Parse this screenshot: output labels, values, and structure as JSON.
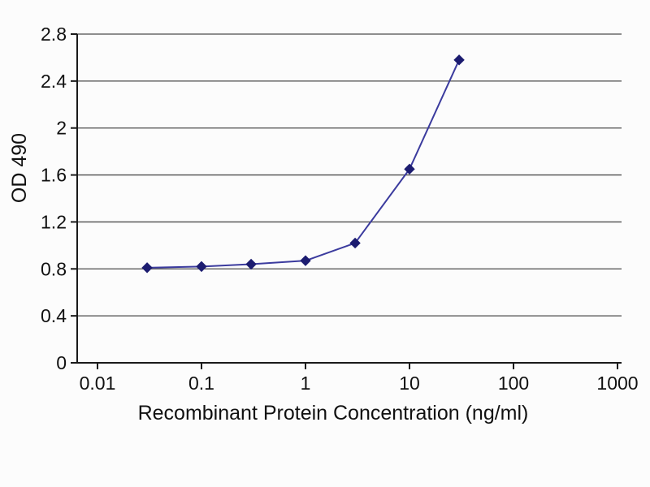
{
  "chart_data": {
    "type": "line",
    "title": "",
    "xlabel": "Recombinant Protein Concentration (ng/ml)",
    "ylabel": "OD 490",
    "x_scale": "log",
    "xlim": [
      0.01,
      1000
    ],
    "ylim": [
      0,
      2.8
    ],
    "x_ticks": [
      0.01,
      0.1,
      1,
      10,
      100,
      1000
    ],
    "x_tick_labels": [
      "0.01",
      "0.1",
      "1",
      "10",
      "100",
      "1000"
    ],
    "y_ticks": [
      0,
      0.4,
      0.8,
      1.2,
      1.6,
      2,
      2.4,
      2.8
    ],
    "y_tick_labels": [
      "0",
      "0.4",
      "0.8",
      "1.2",
      "1.6",
      "2",
      "2.4",
      "2.8"
    ],
    "grid": "horizontal",
    "legend": "none",
    "axis_color": "#1a1a1a",
    "grid_color": "#4d4d4d",
    "text_color": "#111111",
    "series": [
      {
        "name": "OD 490",
        "color": "#3b3b9e",
        "marker": "diamond",
        "marker_color": "#1c1c70",
        "x": [
          0.03,
          0.1,
          0.3,
          1,
          3,
          10,
          30
        ],
        "y": [
          0.81,
          0.82,
          0.84,
          0.87,
          1.02,
          1.65,
          2.58
        ]
      }
    ]
  }
}
